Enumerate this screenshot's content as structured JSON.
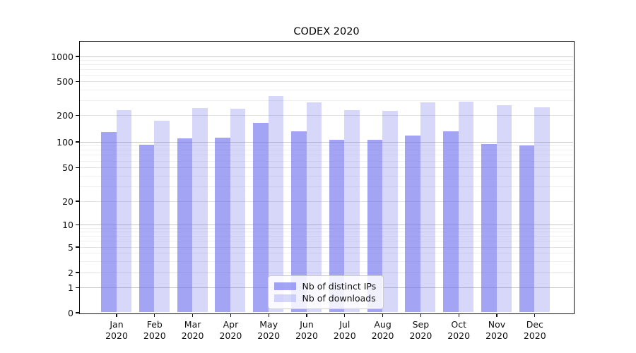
{
  "chart_data": {
    "type": "bar",
    "title": "CODEX 2020",
    "categories": [
      "Jan 2020",
      "Feb 2020",
      "Mar 2020",
      "Apr 2020",
      "May 2020",
      "Jun 2020",
      "Jul 2020",
      "Aug 2020",
      "Sep 2020",
      "Oct 2020",
      "Nov 2020",
      "Dec 2020"
    ],
    "series": [
      {
        "name": "Nb of distinct IPs",
        "color": "rgba(108,108,238,0.62)",
        "color_hex": "#a4a4f0",
        "values": [
          127,
          91,
          108,
          110,
          164,
          131,
          104,
          104,
          117,
          131,
          94,
          90
        ]
      },
      {
        "name": "Nb of downloads",
        "color": "rgba(108,108,238,0.27)",
        "color_hex": "#d8d8f7",
        "values": [
          230,
          173,
          240,
          236,
          335,
          280,
          230,
          225,
          280,
          286,
          260,
          246
        ]
      }
    ],
    "xlabel": "",
    "ylabel": "",
    "yscale": "symlog",
    "yticks": [
      0,
      1,
      2,
      5,
      10,
      20,
      50,
      100,
      200,
      500,
      1000
    ],
    "ylim": [
      0,
      1300
    ],
    "grid": true,
    "legend": {
      "position": "lower center",
      "entries": [
        "Nb of distinct IPs",
        "Nb of downloads"
      ]
    }
  }
}
